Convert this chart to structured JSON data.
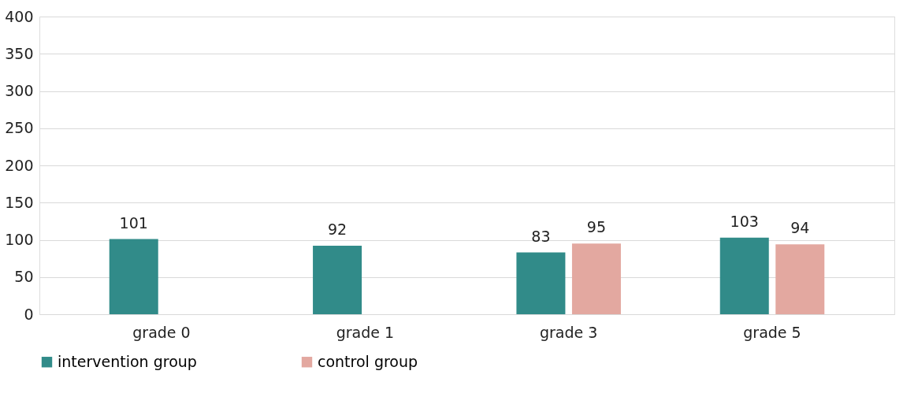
{
  "chart_data": {
    "type": "bar",
    "categories": [
      "grade 0",
      "grade 1",
      "grade 3",
      "grade 5"
    ],
    "series": [
      {
        "name": "intervention group",
        "color": "#318b89",
        "values": [
          101,
          92,
          83,
          103
        ]
      },
      {
        "name": "control group",
        "color": "#e3a8a0",
        "values": [
          null,
          null,
          95,
          94
        ]
      }
    ],
    "ylim": [
      0,
      400
    ],
    "yticks": [
      0,
      50,
      100,
      150,
      200,
      250,
      300,
      350,
      400
    ],
    "grid": "y",
    "legend": "bottom",
    "data_labels": true
  }
}
